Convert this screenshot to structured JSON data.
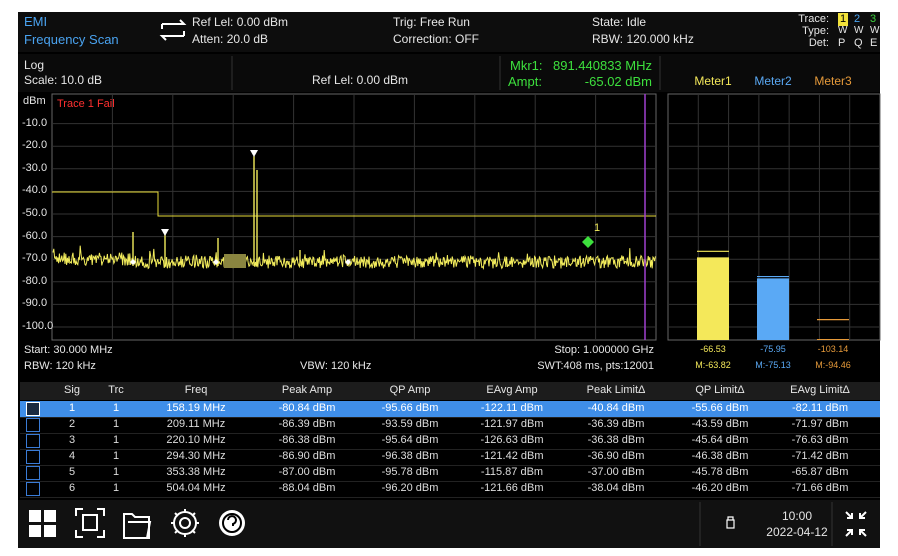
{
  "header": {
    "mode": "EMI",
    "scan": "Frequency Scan",
    "ref_level": "Ref Lel: 0.00 dBm",
    "atten": "Atten: 20.0 dB",
    "trig": "Trig: Free Run",
    "correction": "Correction: OFF",
    "state": "State: Idle",
    "rbw": "RBW: 120.000 kHz",
    "trace_label": "Trace:",
    "type_label": "Type:",
    "det_label": "Det:",
    "traces": [
      "1",
      "2",
      "3"
    ],
    "types": [
      "W",
      "W",
      "W"
    ],
    "dets": [
      "P",
      "Q",
      "E"
    ]
  },
  "info": {
    "scale_type": "Log",
    "scale": "Scale: 10.0 dB",
    "ref_level": "Ref Lel: 0.00 dBm",
    "marker_freq_label": "Mkr1:",
    "marker_freq": "891.440833 MHz",
    "marker_ampt_label": "Ampt:",
    "marker_ampt": "-65.02 dBm"
  },
  "plot": {
    "y_unit": "dBm",
    "y_labels": [
      "-10.0",
      "-20.0",
      "-30.0",
      "-40.0",
      "-50.0",
      "-60.0",
      "-70.0",
      "-80.0",
      "-90.0",
      "-100.0"
    ],
    "fail_text": "Trace 1 Fail",
    "marker_label": "1",
    "start": "Start: 30.000 MHz",
    "stop": "Stop: 1.000000 GHz",
    "rbw": "RBW: 120 kHz",
    "vbw": "VBW: 120 kHz",
    "swt": "SWT:408 ms, pts:12001"
  },
  "meters": [
    {
      "name": "Meter1",
      "color": "#f4e85a",
      "value": -66.53,
      "max": {
        "value": -63.82,
        "label": "M:-63.82"
      }
    },
    {
      "name": "Meter2",
      "color": "#5aa9f5",
      "value": -75.95,
      "max": {
        "value": -75.13,
        "label": "M:-75.13"
      }
    },
    {
      "name": "Meter3",
      "color": "#e69a3a",
      "value": -103.14,
      "max": {
        "value": -94.46,
        "label": "M:-94.46"
      }
    }
  ],
  "table": {
    "columns": [
      "Sig",
      "Trc",
      "Freq",
      "Peak Amp",
      "QP Amp",
      "EAvg Amp",
      "Peak LimitΔ",
      "QP LimitΔ",
      "EAvg LimitΔ"
    ],
    "rows": [
      [
        "1",
        "1",
        "158.19 MHz",
        "-80.84 dBm",
        "-95.66 dBm",
        "-122.11 dBm",
        "-40.84 dBm",
        "-55.66 dBm",
        "-82.11 dBm"
      ],
      [
        "2",
        "1",
        "209.11 MHz",
        "-86.39 dBm",
        "-93.59 dBm",
        "-121.97 dBm",
        "-36.39 dBm",
        "-43.59 dBm",
        "-71.97 dBm"
      ],
      [
        "3",
        "1",
        "220.10 MHz",
        "-86.38 dBm",
        "-95.64 dBm",
        "-126.63 dBm",
        "-36.38 dBm",
        "-45.64 dBm",
        "-76.63 dBm"
      ],
      [
        "4",
        "1",
        "294.30 MHz",
        "-86.90 dBm",
        "-96.38 dBm",
        "-121.42 dBm",
        "-36.90 dBm",
        "-46.38 dBm",
        "-71.42 dBm"
      ],
      [
        "5",
        "1",
        "353.38 MHz",
        "-87.00 dBm",
        "-95.78 dBm",
        "-115.87 dBm",
        "-37.00 dBm",
        "-45.78 dBm",
        "-65.87 dBm"
      ],
      [
        "6",
        "1",
        "504.04 MHz",
        "-88.04 dBm",
        "-96.20 dBm",
        "-121.66 dBm",
        "-38.04 dBm",
        "-46.20 dBm",
        "-71.66 dBm"
      ]
    ]
  },
  "status": {
    "time": "10:00",
    "date": "2022-04-12"
  }
}
